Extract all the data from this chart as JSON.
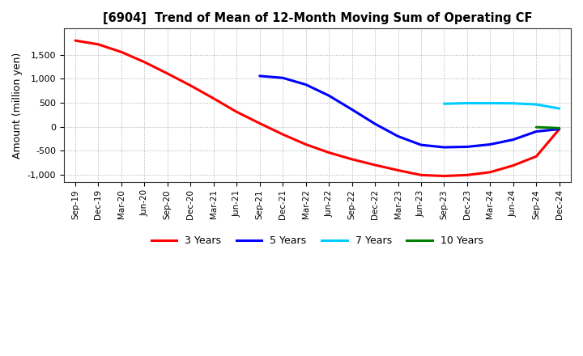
{
  "title": "[6904]  Trend of Mean of 12-Month Moving Sum of Operating CF",
  "ylabel": "Amount (million yen)",
  "background_color": "#ffffff",
  "grid_color": "#888888",
  "ylim": [
    -1150,
    2050
  ],
  "yticks": [
    -1000,
    -500,
    0,
    500,
    1000,
    1500
  ],
  "x_labels": [
    "Sep-19",
    "Dec-19",
    "Mar-20",
    "Jun-20",
    "Sep-20",
    "Dec-20",
    "Mar-21",
    "Jun-21",
    "Sep-21",
    "Dec-21",
    "Mar-22",
    "Jun-22",
    "Sep-22",
    "Dec-22",
    "Mar-23",
    "Jun-23",
    "Sep-23",
    "Dec-23",
    "Mar-24",
    "Jun-24",
    "Sep-24",
    "Dec-24"
  ],
  "series_3yr": {
    "color": "#ff0000",
    "label": "3 Years",
    "x": [
      0,
      1,
      2,
      3,
      4,
      5,
      6,
      7,
      8,
      9,
      10,
      11,
      12,
      13,
      14,
      15,
      16,
      17,
      18,
      19,
      20,
      21
    ],
    "y": [
      1800,
      1720,
      1560,
      1350,
      1110,
      860,
      590,
      310,
      70,
      -160,
      -370,
      -540,
      -680,
      -800,
      -910,
      -1010,
      -1030,
      -1010,
      -950,
      -810,
      -620,
      -50
    ]
  },
  "series_5yr": {
    "color": "#0000ff",
    "label": "5 Years",
    "x": [
      8,
      9,
      10,
      11,
      12,
      13,
      14,
      15,
      16,
      17,
      18,
      19,
      20,
      21
    ],
    "y": [
      1060,
      1020,
      880,
      650,
      360,
      60,
      -200,
      -380,
      -430,
      -420,
      -370,
      -270,
      -100,
      -50
    ]
  },
  "series_7yr": {
    "color": "#00ccff",
    "label": "7 Years",
    "x": [
      16,
      17,
      18,
      19,
      20,
      21
    ],
    "y": [
      480,
      492,
      492,
      488,
      465,
      380
    ]
  },
  "series_10yr": {
    "color": "#008000",
    "label": "10 Years",
    "x": [
      20,
      21
    ],
    "y": [
      -10,
      -30
    ]
  }
}
